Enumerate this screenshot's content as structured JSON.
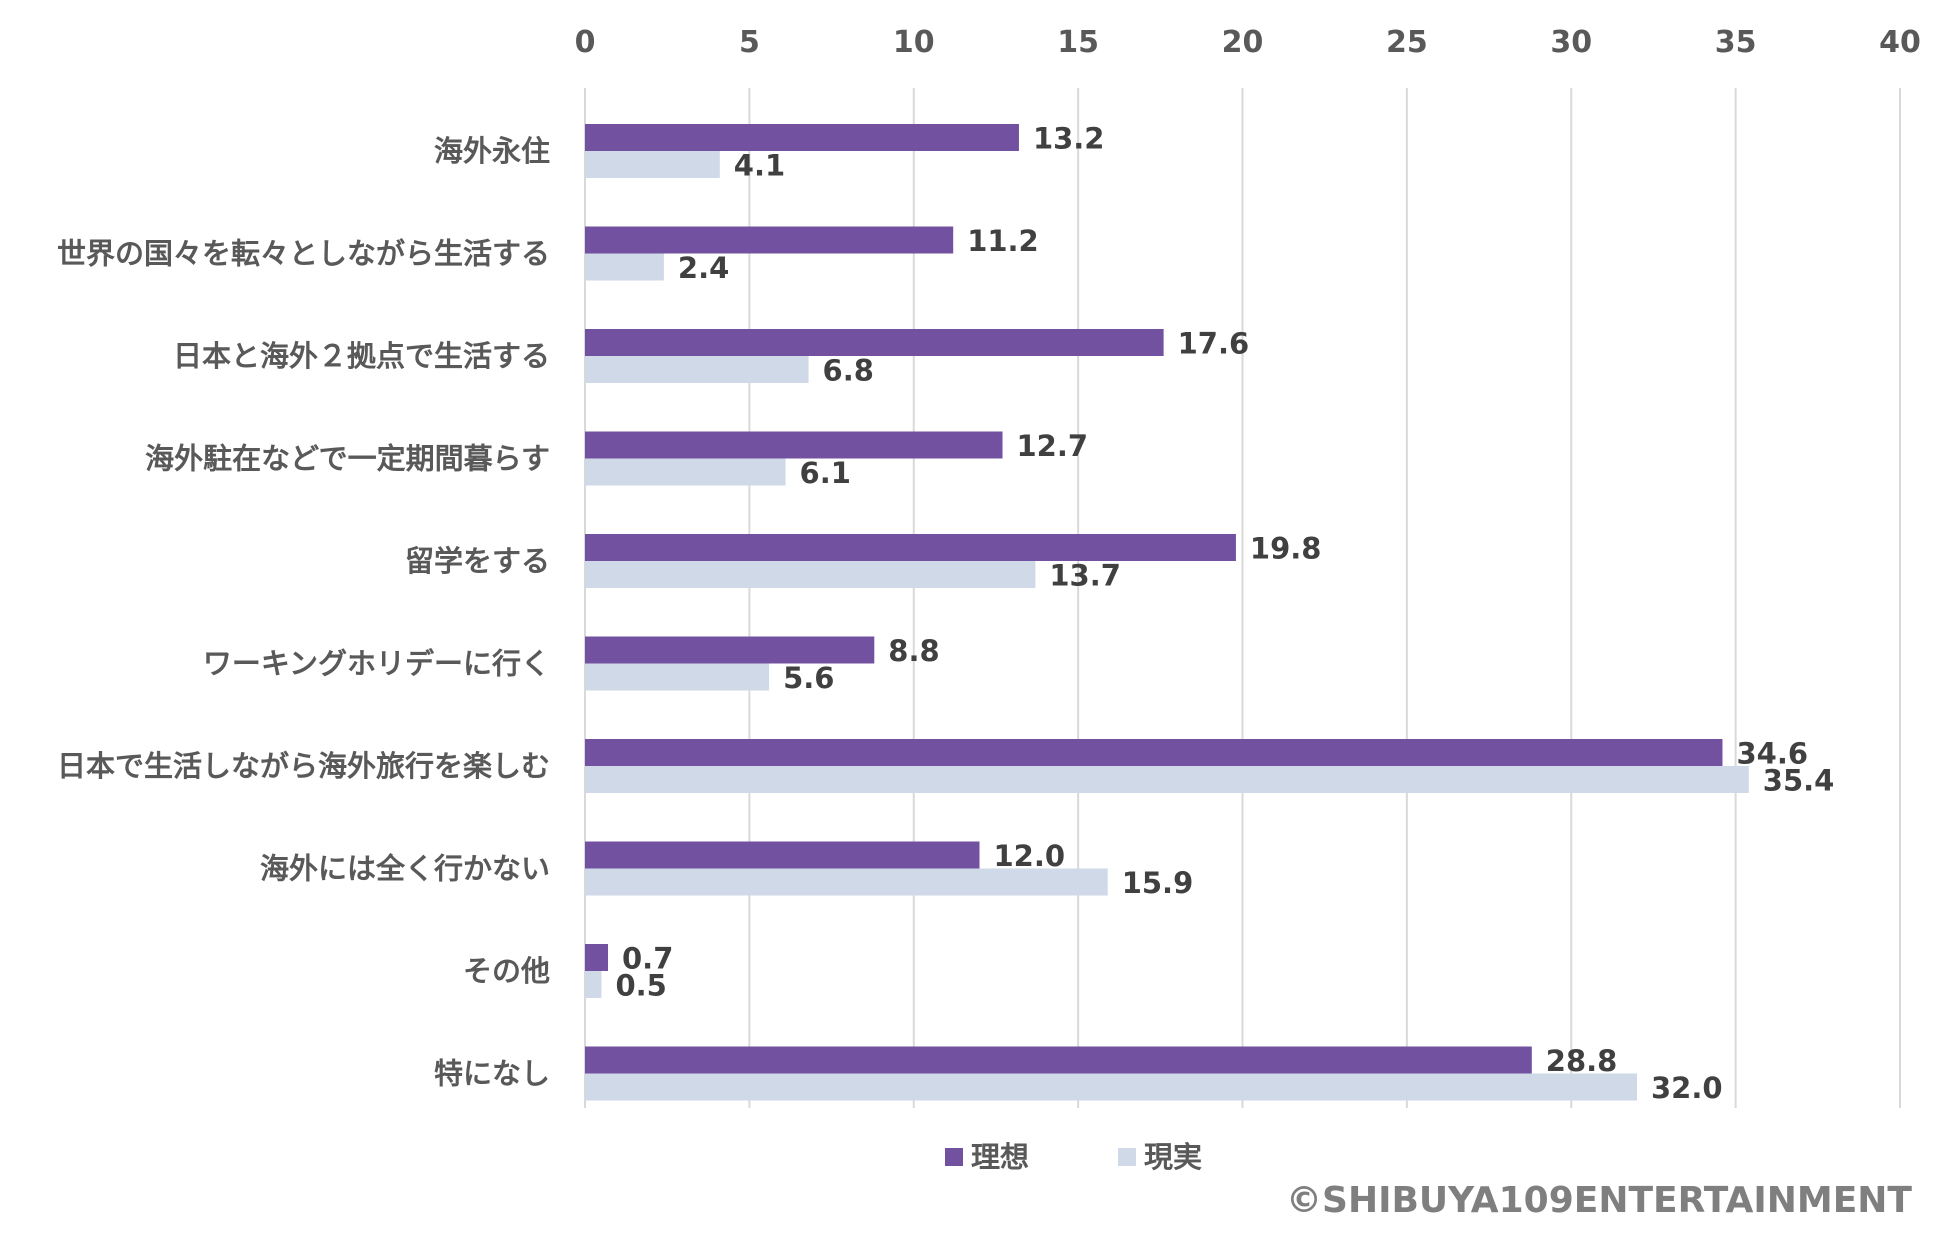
{
  "chart_data": {
    "type": "bar",
    "orientation": "horizontal",
    "categories": [
      "海外永住",
      "世界の国々を転々としながら生活する",
      "日本と海外２拠点で生活する",
      "海外駐在などで一定期間暮らす",
      "留学をする",
      "ワーキングホリデーに行く",
      "日本で生活しながら海外旅行を楽しむ",
      "海外には全く行かない",
      "その他",
      "特になし"
    ],
    "series": [
      {
        "name": "理想",
        "color": "#7251a0",
        "values": [
          13.2,
          11.2,
          17.6,
          12.7,
          19.8,
          8.8,
          34.6,
          12.0,
          0.7,
          28.8
        ]
      },
      {
        "name": "現実",
        "color": "#cfd9e8",
        "values": [
          4.1,
          2.4,
          6.8,
          6.1,
          13.7,
          5.6,
          35.4,
          15.9,
          0.5,
          32.0
        ]
      }
    ],
    "xlim": [
      0,
      40
    ],
    "xticks": [
      0,
      5,
      10,
      15,
      20,
      25,
      30,
      35,
      40
    ],
    "axis_position": "top",
    "grid": true,
    "legend": "bottom",
    "value_format": "1 decimal"
  },
  "copyright": "©SHIBUYA109ENTERTAINMENT"
}
